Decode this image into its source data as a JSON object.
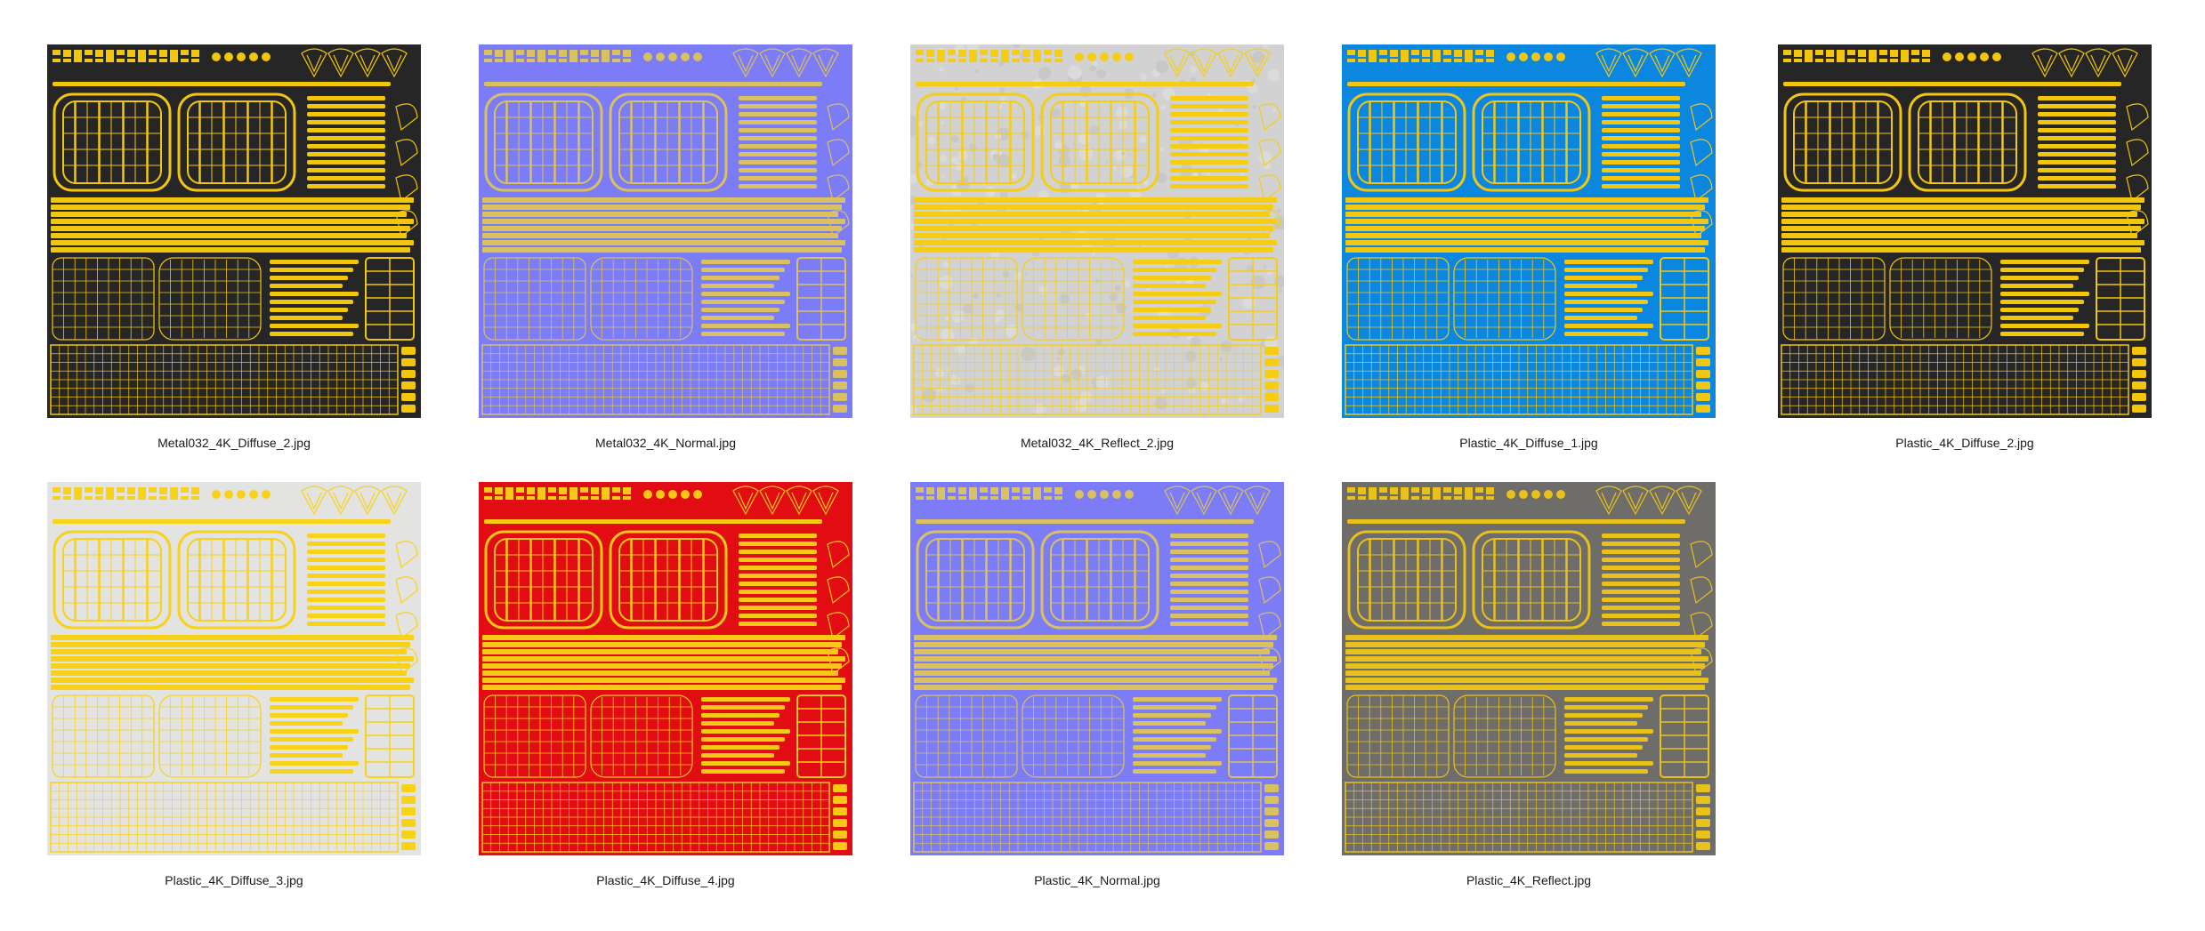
{
  "gallery": {
    "items": [
      {
        "filename": "Metal032_4K_Diffuse_2.jpg",
        "background": "#262626",
        "yellow": "#f2c60c",
        "noise": false
      },
      {
        "filename": "Metal032_4K_Normal.jpg",
        "background": "#7c7cf6",
        "yellow": "#d9c060",
        "noise": false
      },
      {
        "filename": "Metal032_4K_Reflect_2.jpg",
        "background": "#d2d2d2",
        "yellow": "#f5ce14",
        "noise": true
      },
      {
        "filename": "Plastic_4K_Diffuse_1.jpg",
        "background": "#0c87e0",
        "yellow": "#f2c712",
        "noise": false
      },
      {
        "filename": "Plastic_4K_Diffuse_2.jpg",
        "background": "#262626",
        "yellow": "#f2c60c",
        "noise": false
      },
      {
        "filename": "Plastic_4K_Diffuse_3.jpg",
        "background": "#e3e3e1",
        "yellow": "#f8d217",
        "noise": false
      },
      {
        "filename": "Plastic_4K_Diffuse_4.jpg",
        "background": "#e20d12",
        "yellow": "#f7c816",
        "noise": false
      },
      {
        "filename": "Plastic_4K_Normal.jpg",
        "background": "#7c7cf6",
        "yellow": "#d9c060",
        "noise": false
      },
      {
        "filename": "Plastic_4K_Reflect.jpg",
        "background": "#6f6d6a",
        "yellow": "#e8c21a",
        "noise": false
      }
    ]
  }
}
